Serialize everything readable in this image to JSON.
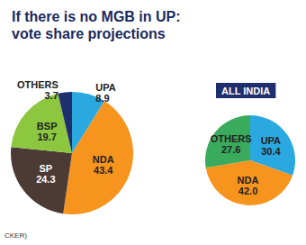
{
  "title": "If there is no MGB in UP:\nvote share projections",
  "source": "CKER)",
  "chart_data": [
    {
      "type": "pie",
      "categories": [
        "UPA",
        "NDA",
        "SP",
        "BSP",
        "OTHERS"
      ],
      "values": [
        8.9,
        43.4,
        24.3,
        19.7,
        3.7
      ],
      "colors": [
        "#2aa8e0",
        "#f7941d",
        "#4b3b34",
        "#8dc63f",
        "#1f2f6e"
      ],
      "data_labels": true
    },
    {
      "type": "pie",
      "title": "ALL INDIA",
      "categories": [
        "UPA",
        "NDA",
        "OTHERS"
      ],
      "values": [
        30.4,
        42.0,
        27.6
      ],
      "value_labels": [
        "30.4",
        "42.0",
        "27.6"
      ],
      "colors": [
        "#2aa8e0",
        "#f7941d",
        "#3aaa5c"
      ],
      "data_labels": true
    }
  ]
}
